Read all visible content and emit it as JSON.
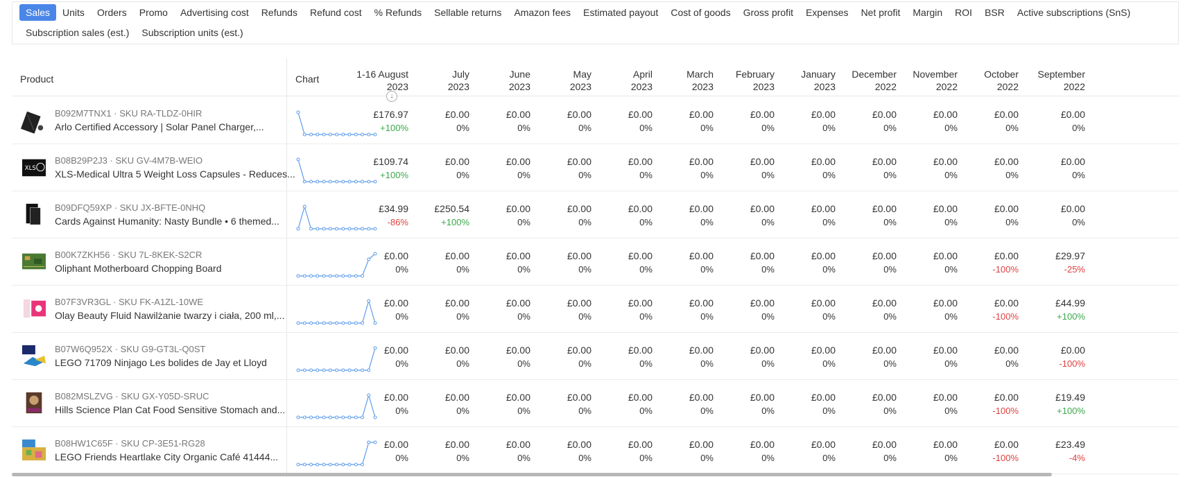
{
  "metrics": {
    "line1": [
      "Sales",
      "Units",
      "Orders",
      "Promo",
      "Advertising cost",
      "Refunds",
      "Refund cost",
      "% Refunds",
      "Sellable returns",
      "Amazon fees",
      "Estimated payout",
      "Cost of goods",
      "Gross profit",
      "Expenses",
      "Net profit",
      "Margin",
      "ROI",
      "BSR",
      "Active subscriptions (SnS)"
    ],
    "line2": [
      "Subscription sales (est.)",
      "Subscription units (est.)"
    ],
    "active": "Sales"
  },
  "table": {
    "product_header": "Product",
    "chart_header": "Chart",
    "months": [
      [
        "1-16 August",
        "2023"
      ],
      [
        "July",
        "2023"
      ],
      [
        "June",
        "2023"
      ],
      [
        "May",
        "2023"
      ],
      [
        "April",
        "2023"
      ],
      [
        "March",
        "2023"
      ],
      [
        "February",
        "2023"
      ],
      [
        "January",
        "2023"
      ],
      [
        "December",
        "2022"
      ],
      [
        "November",
        "2022"
      ],
      [
        "October",
        "2022"
      ],
      [
        "September",
        "2022"
      ]
    ],
    "rows": [
      {
        "id": "B092M7TNX1",
        "sku": "SKU RA-TLDZ-0HIR",
        "name": "Arlo Certified Accessory | Solar Panel Charger,...",
        "thumb": "solar",
        "spark": [
          1,
          0,
          0,
          0,
          0,
          0,
          0,
          0,
          0,
          0,
          0,
          0,
          0
        ],
        "values": [
          [
            "£176.97",
            "+100%"
          ],
          [
            "£0.00",
            "0%"
          ],
          [
            "£0.00",
            "0%"
          ],
          [
            "£0.00",
            "0%"
          ],
          [
            "£0.00",
            "0%"
          ],
          [
            "£0.00",
            "0%"
          ],
          [
            "£0.00",
            "0%"
          ],
          [
            "£0.00",
            "0%"
          ],
          [
            "£0.00",
            "0%"
          ],
          [
            "£0.00",
            "0%"
          ],
          [
            "£0.00",
            "0%"
          ],
          [
            "£0.00",
            "0%"
          ]
        ]
      },
      {
        "id": "B08B29P2J3",
        "sku": "SKU GV-4M7B-WEIO",
        "name": "XLS-Medical Ultra 5 Weight Loss Capsules - Reduces...",
        "thumb": "xls",
        "spark": [
          1,
          0,
          0,
          0,
          0,
          0,
          0,
          0,
          0,
          0,
          0,
          0,
          0
        ],
        "values": [
          [
            "£109.74",
            "+100%"
          ],
          [
            "£0.00",
            "0%"
          ],
          [
            "£0.00",
            "0%"
          ],
          [
            "£0.00",
            "0%"
          ],
          [
            "£0.00",
            "0%"
          ],
          [
            "£0.00",
            "0%"
          ],
          [
            "£0.00",
            "0%"
          ],
          [
            "£0.00",
            "0%"
          ],
          [
            "£0.00",
            "0%"
          ],
          [
            "£0.00",
            "0%"
          ],
          [
            "£0.00",
            "0%"
          ],
          [
            "£0.00",
            "0%"
          ]
        ]
      },
      {
        "id": "B09DFQ59XP",
        "sku": "SKU JX-BFTE-0NHQ",
        "name": "Cards Against Humanity: Nasty Bundle • 6 themed...",
        "thumb": "cards",
        "spark": [
          0,
          0.14,
          0,
          0,
          0,
          0,
          0,
          0,
          0,
          0,
          0,
          0,
          0
        ],
        "values": [
          [
            "£34.99",
            "-86%"
          ],
          [
            "£250.54",
            "+100%"
          ],
          [
            "£0.00",
            "0%"
          ],
          [
            "£0.00",
            "0%"
          ],
          [
            "£0.00",
            "0%"
          ],
          [
            "£0.00",
            "0%"
          ],
          [
            "£0.00",
            "0%"
          ],
          [
            "£0.00",
            "0%"
          ],
          [
            "£0.00",
            "0%"
          ],
          [
            "£0.00",
            "0%"
          ],
          [
            "£0.00",
            "0%"
          ],
          [
            "£0.00",
            "0%"
          ]
        ]
      },
      {
        "id": "B00K7ZKH56",
        "sku": "SKU 7L-8KEK-S2CR",
        "name": "Oliphant Motherboard Chopping Board",
        "thumb": "board",
        "spark": [
          0,
          0,
          0,
          0,
          0,
          0,
          0,
          0,
          0,
          0,
          0,
          0.75,
          1
        ],
        "values": [
          [
            "£0.00",
            "0%"
          ],
          [
            "£0.00",
            "0%"
          ],
          [
            "£0.00",
            "0%"
          ],
          [
            "£0.00",
            "0%"
          ],
          [
            "£0.00",
            "0%"
          ],
          [
            "£0.00",
            "0%"
          ],
          [
            "£0.00",
            "0%"
          ],
          [
            "£0.00",
            "0%"
          ],
          [
            "£0.00",
            "0%"
          ],
          [
            "£0.00",
            "0%"
          ],
          [
            "£0.00",
            "-100%"
          ],
          [
            "£29.97",
            "-25%"
          ]
        ]
      },
      {
        "id": "B07F3VR3GL",
        "sku": "SKU FK-A1ZL-10WE",
        "name": "Olay Beauty Fluid Nawilżanie twarzy i ciała, 200 ml,...",
        "thumb": "olay",
        "spark": [
          0,
          0,
          0,
          0,
          0,
          0,
          0,
          0,
          0,
          0,
          0,
          1,
          0
        ],
        "values": [
          [
            "£0.00",
            "0%"
          ],
          [
            "£0.00",
            "0%"
          ],
          [
            "£0.00",
            "0%"
          ],
          [
            "£0.00",
            "0%"
          ],
          [
            "£0.00",
            "0%"
          ],
          [
            "£0.00",
            "0%"
          ],
          [
            "£0.00",
            "0%"
          ],
          [
            "£0.00",
            "0%"
          ],
          [
            "£0.00",
            "0%"
          ],
          [
            "£0.00",
            "0%"
          ],
          [
            "£0.00",
            "-100%"
          ],
          [
            "£44.99",
            "+100%"
          ]
        ]
      },
      {
        "id": "B07W6Q952X",
        "sku": "SKU G9-GT3L-Q0ST",
        "name": "LEGO 71709 Ninjago Les bolides de Jay et Lloyd",
        "thumb": "lego",
        "spark": [
          0,
          0,
          0,
          0,
          0,
          0,
          0,
          0,
          0,
          0,
          0,
          0,
          1
        ],
        "values": [
          [
            "£0.00",
            "0%"
          ],
          [
            "£0.00",
            "0%"
          ],
          [
            "£0.00",
            "0%"
          ],
          [
            "£0.00",
            "0%"
          ],
          [
            "£0.00",
            "0%"
          ],
          [
            "£0.00",
            "0%"
          ],
          [
            "£0.00",
            "0%"
          ],
          [
            "£0.00",
            "0%"
          ],
          [
            "£0.00",
            "0%"
          ],
          [
            "£0.00",
            "0%"
          ],
          [
            "£0.00",
            "0%"
          ],
          [
            "£0.00",
            "-100%"
          ]
        ]
      },
      {
        "id": "B082MSLZVG",
        "sku": "SKU GX-Y05D-SRUC",
        "name": "Hills Science Plan Cat Food Sensitive Stomach and...",
        "thumb": "cat",
        "spark": [
          0,
          0,
          0,
          0,
          0,
          0,
          0,
          0,
          0,
          0,
          0,
          1,
          0
        ],
        "values": [
          [
            "£0.00",
            "0%"
          ],
          [
            "£0.00",
            "0%"
          ],
          [
            "£0.00",
            "0%"
          ],
          [
            "£0.00",
            "0%"
          ],
          [
            "£0.00",
            "0%"
          ],
          [
            "£0.00",
            "0%"
          ],
          [
            "£0.00",
            "0%"
          ],
          [
            "£0.00",
            "0%"
          ],
          [
            "£0.00",
            "0%"
          ],
          [
            "£0.00",
            "0%"
          ],
          [
            "£0.00",
            "-100%"
          ],
          [
            "£19.49",
            "+100%"
          ]
        ]
      },
      {
        "id": "B08HW1C65F",
        "sku": "SKU CP-3E51-RG28",
        "name": "LEGO Friends Heartlake City Organic Café 41444...",
        "thumb": "lego2",
        "spark": [
          0,
          0,
          0,
          0,
          0,
          0,
          0,
          0,
          0,
          0,
          0,
          1,
          1
        ],
        "values": [
          [
            "£0.00",
            "0%"
          ],
          [
            "£0.00",
            "0%"
          ],
          [
            "£0.00",
            "0%"
          ],
          [
            "£0.00",
            "0%"
          ],
          [
            "£0.00",
            "0%"
          ],
          [
            "£0.00",
            "0%"
          ],
          [
            "£0.00",
            "0%"
          ],
          [
            "£0.00",
            "0%"
          ],
          [
            "£0.00",
            "0%"
          ],
          [
            "£0.00",
            "0%"
          ],
          [
            "£0.00",
            "-100%"
          ],
          [
            "£23.49",
            "-4%"
          ]
        ]
      }
    ]
  }
}
